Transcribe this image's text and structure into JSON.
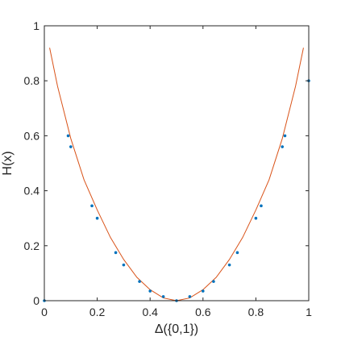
{
  "chart_data": {
    "type": "scatter",
    "xlabel": "Δ({0,1})",
    "ylabel": "H(x)",
    "xlim": [
      0,
      1
    ],
    "ylim": [
      0,
      1
    ],
    "x_ticks": [
      "0",
      "0.2",
      "0.4",
      "0.6",
      "0.8",
      "1"
    ],
    "y_ticks": [
      "0",
      "0.2",
      "0.4",
      "0.6",
      "0.8",
      "1"
    ],
    "grid": false,
    "legend": "none",
    "colors": {
      "points": "#0072BD",
      "curve": "#D95319",
      "axis": "#262626"
    },
    "series": [
      {
        "type": "scatter",
        "x": [
          0.0,
          0.09,
          0.1,
          0.18,
          0.2,
          0.27,
          0.3,
          0.36,
          0.4,
          0.45,
          0.5,
          0.55,
          0.6,
          0.64,
          0.7,
          0.73,
          0.8,
          0.82,
          0.9,
          0.91,
          1.0
        ],
        "y": [
          0.0,
          0.6,
          0.56,
          0.345,
          0.3,
          0.175,
          0.13,
          0.07,
          0.035,
          0.015,
          0.0,
          0.015,
          0.035,
          0.07,
          0.13,
          0.175,
          0.3,
          0.345,
          0.56,
          0.6,
          0.8
        ]
      },
      {
        "type": "line",
        "x": [
          0.02,
          0.05,
          0.1,
          0.15,
          0.2,
          0.25,
          0.3,
          0.35,
          0.4,
          0.45,
          0.5,
          0.55,
          0.6,
          0.65,
          0.7,
          0.75,
          0.8,
          0.85,
          0.9,
          0.95,
          0.98
        ],
        "y": [
          0.92,
          0.78,
          0.59,
          0.44,
          0.33,
          0.23,
          0.15,
          0.085,
          0.04,
          0.01,
          0.0,
          0.01,
          0.04,
          0.085,
          0.15,
          0.23,
          0.33,
          0.44,
          0.59,
          0.78,
          0.92
        ]
      }
    ]
  }
}
